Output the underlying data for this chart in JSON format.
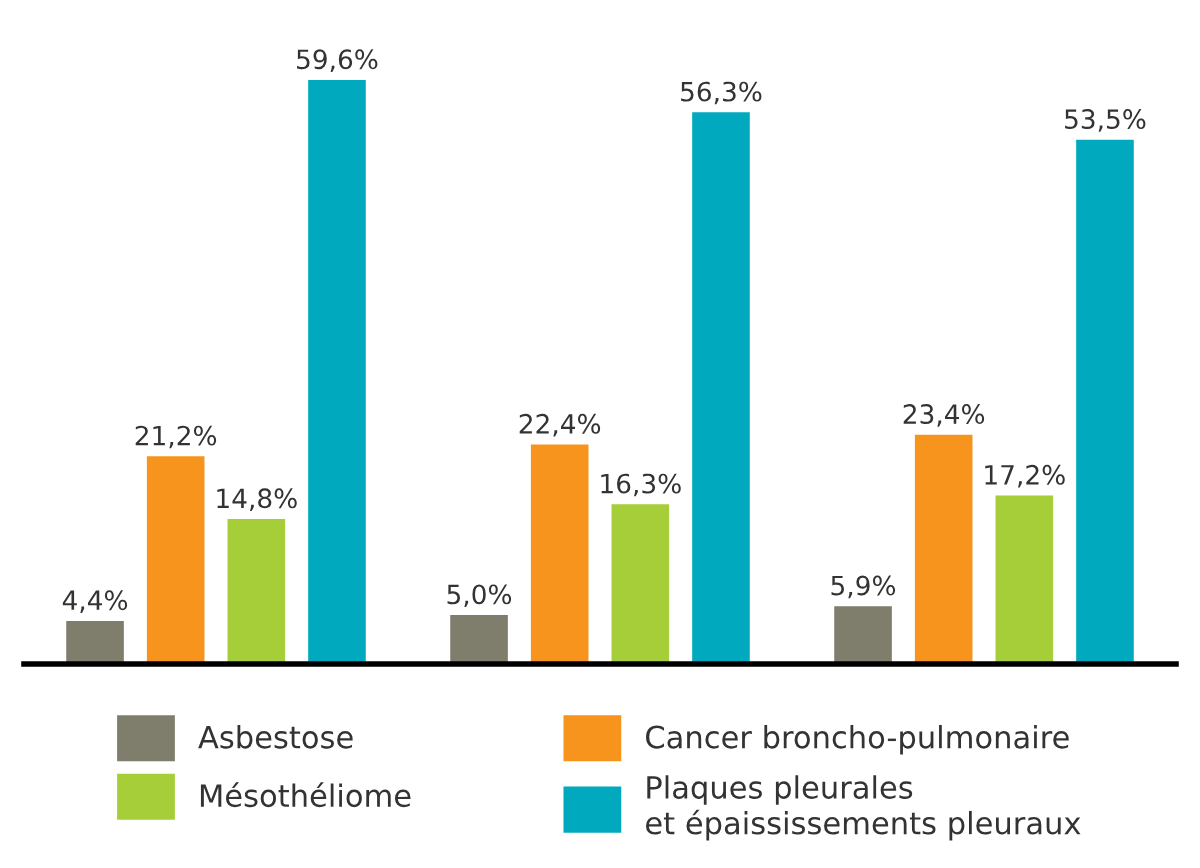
{
  "chart_data": {
    "type": "bar",
    "categories": [
      null,
      null,
      null
    ],
    "series": [
      {
        "name": "Asbestose",
        "color": "#7f7d6c",
        "values": [
          4.4,
          5.0,
          5.9
        ],
        "value_labels": [
          "4,4%",
          "5,0%",
          "5,9%"
        ]
      },
      {
        "name": "Cancer broncho-pulmonaire",
        "color": "#f7941d",
        "values": [
          21.2,
          22.4,
          23.4
        ],
        "value_labels": [
          "21,2%",
          "22,4%",
          "23,4%"
        ]
      },
      {
        "name": "Mésothéliome",
        "color": "#a6ce39",
        "values": [
          14.8,
          16.3,
          17.2
        ],
        "value_labels": [
          "14,8%",
          "16,3%",
          "17,2%"
        ]
      },
      {
        "name": "Plaques pleurales\net épaississements pleuraux",
        "color": "#00a9be",
        "values": [
          59.6,
          56.3,
          53.5
        ],
        "value_labels": [
          "59,6%",
          "56,3%",
          "53,5%"
        ]
      }
    ],
    "grid": false,
    "legend": "bottom"
  }
}
